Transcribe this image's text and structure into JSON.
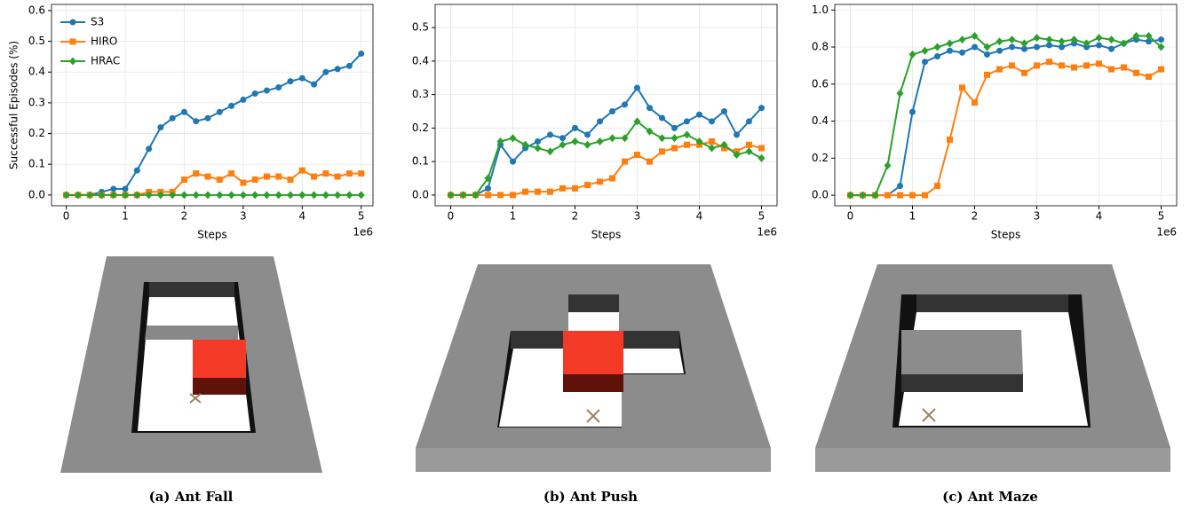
{
  "chart_data": [
    {
      "type": "line",
      "ylabel": "Successful Episodes (%)",
      "xlabel": "Steps",
      "x_offset_label": "1e6",
      "caption": "(a)  Ant Fall",
      "xlim": [
        -0.25,
        5.2
      ],
      "ylim": [
        -0.035,
        0.62
      ],
      "xticks": [
        0,
        1,
        2,
        3,
        4,
        5
      ],
      "yticks": [
        {
          "value": 0,
          "label": "0.0"
        },
        0.1,
        0.2,
        0.3,
        0.4,
        0.5,
        0.6
      ],
      "grid": true,
      "legend": "upper left",
      "x": [
        0,
        0.2,
        0.4,
        0.6,
        0.8,
        1.0,
        1.2,
        1.4,
        1.6,
        1.8,
        2.0,
        2.2,
        2.4,
        2.6,
        2.8,
        3.0,
        3.2,
        3.4,
        3.6,
        3.8,
        4.0,
        4.2,
        4.4,
        4.6,
        4.8,
        5.0
      ],
      "series": [
        {
          "name": "S3",
          "color": "#1f77b4",
          "marker": "circle",
          "values": [
            0,
            0,
            0,
            0.01,
            0.02,
            0.02,
            0.08,
            0.15,
            0.22,
            0.25,
            0.27,
            0.24,
            0.25,
            0.27,
            0.29,
            0.31,
            0.33,
            0.34,
            0.35,
            0.37,
            0.38,
            0.36,
            0.4,
            0.41,
            0.42,
            0.46
          ]
        },
        {
          "name": "HIRO",
          "color": "#ff7f0e",
          "marker": "square",
          "values": [
            0,
            0,
            0,
            0,
            0,
            0,
            0,
            0.01,
            0.01,
            0.01,
            0.05,
            0.07,
            0.06,
            0.05,
            0.07,
            0.04,
            0.05,
            0.06,
            0.06,
            0.05,
            0.08,
            0.06,
            0.07,
            0.06,
            0.07,
            0.07
          ]
        },
        {
          "name": "HRAC",
          "color": "#2ca02c",
          "marker": "diamond",
          "values": [
            0,
            0,
            0,
            0,
            0,
            0,
            0,
            0,
            0,
            0,
            0,
            0,
            0,
            0,
            0,
            0,
            0,
            0,
            0,
            0,
            0,
            0,
            0,
            0,
            0,
            0
          ]
        }
      ]
    },
    {
      "type": "line",
      "xlabel": "Steps",
      "x_offset_label": "1e6",
      "caption": "(b) Ant Push",
      "xlim": [
        -0.25,
        5.25
      ],
      "ylim": [
        -0.032,
        0.569
      ],
      "xticks": [
        0,
        1,
        2,
        3,
        4,
        5
      ],
      "yticks": [
        {
          "value": 0,
          "label": "0.0"
        },
        0.1,
        0.2,
        0.3,
        0.4,
        0.5
      ],
      "grid": true,
      "x": [
        0,
        0.2,
        0.4,
        0.6,
        0.8,
        1.0,
        1.2,
        1.4,
        1.6,
        1.8,
        2.0,
        2.2,
        2.4,
        2.6,
        2.8,
        3.0,
        3.2,
        3.4,
        3.6,
        3.8,
        4.0,
        4.2,
        4.4,
        4.6,
        4.8,
        5.0
      ],
      "series": [
        {
          "name": "S3",
          "color": "#1f77b4",
          "marker": "circle",
          "values": [
            0,
            0,
            0,
            0.02,
            0.15,
            0.1,
            0.14,
            0.16,
            0.18,
            0.17,
            0.2,
            0.18,
            0.22,
            0.25,
            0.27,
            0.32,
            0.26,
            0.23,
            0.2,
            0.22,
            0.24,
            0.22,
            0.25,
            0.18,
            0.22,
            0.26
          ]
        },
        {
          "name": "HIRO",
          "color": "#ff7f0e",
          "marker": "square",
          "values": [
            0,
            0,
            0,
            0,
            0,
            0,
            0.01,
            0.01,
            0.01,
            0.02,
            0.02,
            0.03,
            0.04,
            0.05,
            0.1,
            0.12,
            0.1,
            0.13,
            0.14,
            0.15,
            0.15,
            0.16,
            0.14,
            0.13,
            0.15,
            0.14
          ]
        },
        {
          "name": "HRAC",
          "color": "#2ca02c",
          "marker": "diamond",
          "values": [
            0,
            0,
            0,
            0.05,
            0.16,
            0.17,
            0.15,
            0.14,
            0.13,
            0.15,
            0.16,
            0.15,
            0.16,
            0.17,
            0.17,
            0.22,
            0.19,
            0.17,
            0.17,
            0.18,
            0.16,
            0.14,
            0.15,
            0.12,
            0.13,
            0.11
          ]
        }
      ]
    },
    {
      "type": "line",
      "xlabel": "Steps",
      "x_offset_label": "1e6",
      "caption": "(c)  Ant Maze",
      "xlim": [
        -0.25,
        5.25
      ],
      "ylim": [
        -0.057,
        1.03
      ],
      "xticks": [
        0,
        1,
        2,
        3,
        4,
        5
      ],
      "yticks": [
        {
          "value": 0,
          "label": "0.0"
        },
        0.2,
        0.4,
        0.6,
        0.8,
        {
          "value": 1,
          "label": "1.0"
        }
      ],
      "grid": true,
      "x": [
        0,
        0.2,
        0.4,
        0.6,
        0.8,
        1.0,
        1.2,
        1.4,
        1.6,
        1.8,
        2.0,
        2.2,
        2.4,
        2.6,
        2.8,
        3.0,
        3.2,
        3.4,
        3.6,
        3.8,
        4.0,
        4.2,
        4.4,
        4.6,
        4.8,
        5.0
      ],
      "series": [
        {
          "name": "S3",
          "color": "#1f77b4",
          "marker": "circle",
          "values": [
            0,
            0,
            0,
            0,
            0.05,
            0.45,
            0.72,
            0.75,
            0.78,
            0.77,
            0.8,
            0.76,
            0.78,
            0.8,
            0.79,
            0.8,
            0.81,
            0.8,
            0.82,
            0.8,
            0.81,
            0.79,
            0.82,
            0.84,
            0.83,
            0.84
          ]
        },
        {
          "name": "HIRO",
          "color": "#ff7f0e",
          "marker": "square",
          "values": [
            0,
            0,
            0,
            0,
            0,
            0,
            0,
            0.05,
            0.3,
            0.58,
            0.5,
            0.65,
            0.68,
            0.7,
            0.66,
            0.7,
            0.72,
            0.7,
            0.69,
            0.7,
            0.71,
            0.68,
            0.69,
            0.66,
            0.64,
            0.68
          ]
        },
        {
          "name": "HRAC",
          "color": "#2ca02c",
          "marker": "diamond",
          "values": [
            0,
            0,
            0,
            0.16,
            0.55,
            0.76,
            0.78,
            0.8,
            0.82,
            0.84,
            0.86,
            0.8,
            0.83,
            0.84,
            0.82,
            0.85,
            0.84,
            0.83,
            0.84,
            0.82,
            0.85,
            0.84,
            0.82,
            0.86,
            0.86,
            0.8
          ]
        }
      ]
    }
  ]
}
